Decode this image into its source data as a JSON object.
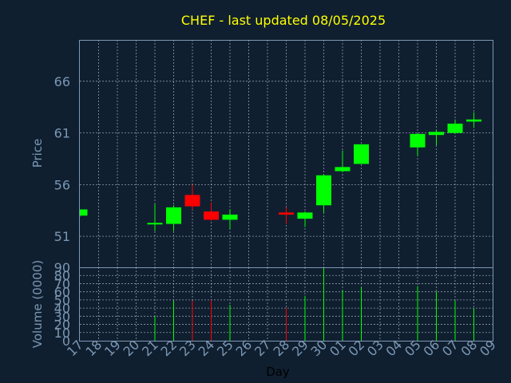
{
  "chart_data": {
    "type": "candlestick",
    "title": "CHEF - last updated 08/05/2025",
    "xlabel": "Day",
    "price_ylabel": "Price",
    "volume_ylabel": "Volume (0000)",
    "price_ticks": [
      51,
      56,
      61,
      66
    ],
    "price_ylim": [
      48,
      70
    ],
    "volume_ticks": [
      0,
      10,
      20,
      30,
      40,
      50,
      60,
      70,
      80,
      90
    ],
    "volume_ylim": [
      0,
      90
    ],
    "grid": true,
    "colors": {
      "up": "#00ff00",
      "down": "#ff0000",
      "background": "#0f1f30",
      "text": "#7c97b3",
      "title": "#ffff00"
    },
    "days": [
      "17",
      "18",
      "19",
      "20",
      "21",
      "22",
      "23",
      "24",
      "25",
      "26",
      "27",
      "28",
      "29",
      "30",
      "01",
      "02",
      "03",
      "04",
      "05",
      "06",
      "07",
      "08",
      "09"
    ],
    "candles": [
      {
        "day": "17",
        "open": 53.0,
        "high": 53.6,
        "low": 52.9,
        "close": 53.6,
        "volume": 0
      },
      {
        "day": "21",
        "open": 52.3,
        "high": 54.1,
        "low": 51.5,
        "close": 52.3,
        "volume": 30
      },
      {
        "day": "22",
        "open": 52.2,
        "high": 54.0,
        "low": 51.5,
        "close": 53.8,
        "volume": 49
      },
      {
        "day": "23",
        "open": 55.0,
        "high": 56.0,
        "low": 53.6,
        "close": 53.9,
        "volume": 49
      },
      {
        "day": "24",
        "open": 53.4,
        "high": 54.3,
        "low": 52.5,
        "close": 52.6,
        "volume": 50
      },
      {
        "day": "25",
        "open": 52.6,
        "high": 53.6,
        "low": 51.7,
        "close": 53.1,
        "volume": 44
      },
      {
        "day": "28",
        "open": 53.3,
        "high": 53.8,
        "low": 52.2,
        "close": 53.1,
        "volume": 40
      },
      {
        "day": "29",
        "open": 52.7,
        "high": 53.4,
        "low": 51.9,
        "close": 53.3,
        "volume": 55
      },
      {
        "day": "30",
        "open": 54.0,
        "high": 57.0,
        "low": 53.3,
        "close": 56.9,
        "volume": 90
      },
      {
        "day": "01",
        "open": 57.3,
        "high": 59.3,
        "low": 57.2,
        "close": 57.7,
        "volume": 62
      },
      {
        "day": "02",
        "open": 58.0,
        "high": 59.9,
        "low": 58.0,
        "close": 59.9,
        "volume": 66
      },
      {
        "day": "05",
        "open": 59.6,
        "high": 61.0,
        "low": 58.8,
        "close": 60.9,
        "volume": 67
      },
      {
        "day": "06",
        "open": 60.8,
        "high": 61.3,
        "low": 59.8,
        "close": 61.1,
        "volume": 60
      },
      {
        "day": "07",
        "open": 61.0,
        "high": 62.3,
        "low": 60.9,
        "close": 61.9,
        "volume": 49
      },
      {
        "day": "08",
        "open": 62.1,
        "high": 63.0,
        "low": 61.5,
        "close": 62.3,
        "volume": 40
      }
    ]
  }
}
